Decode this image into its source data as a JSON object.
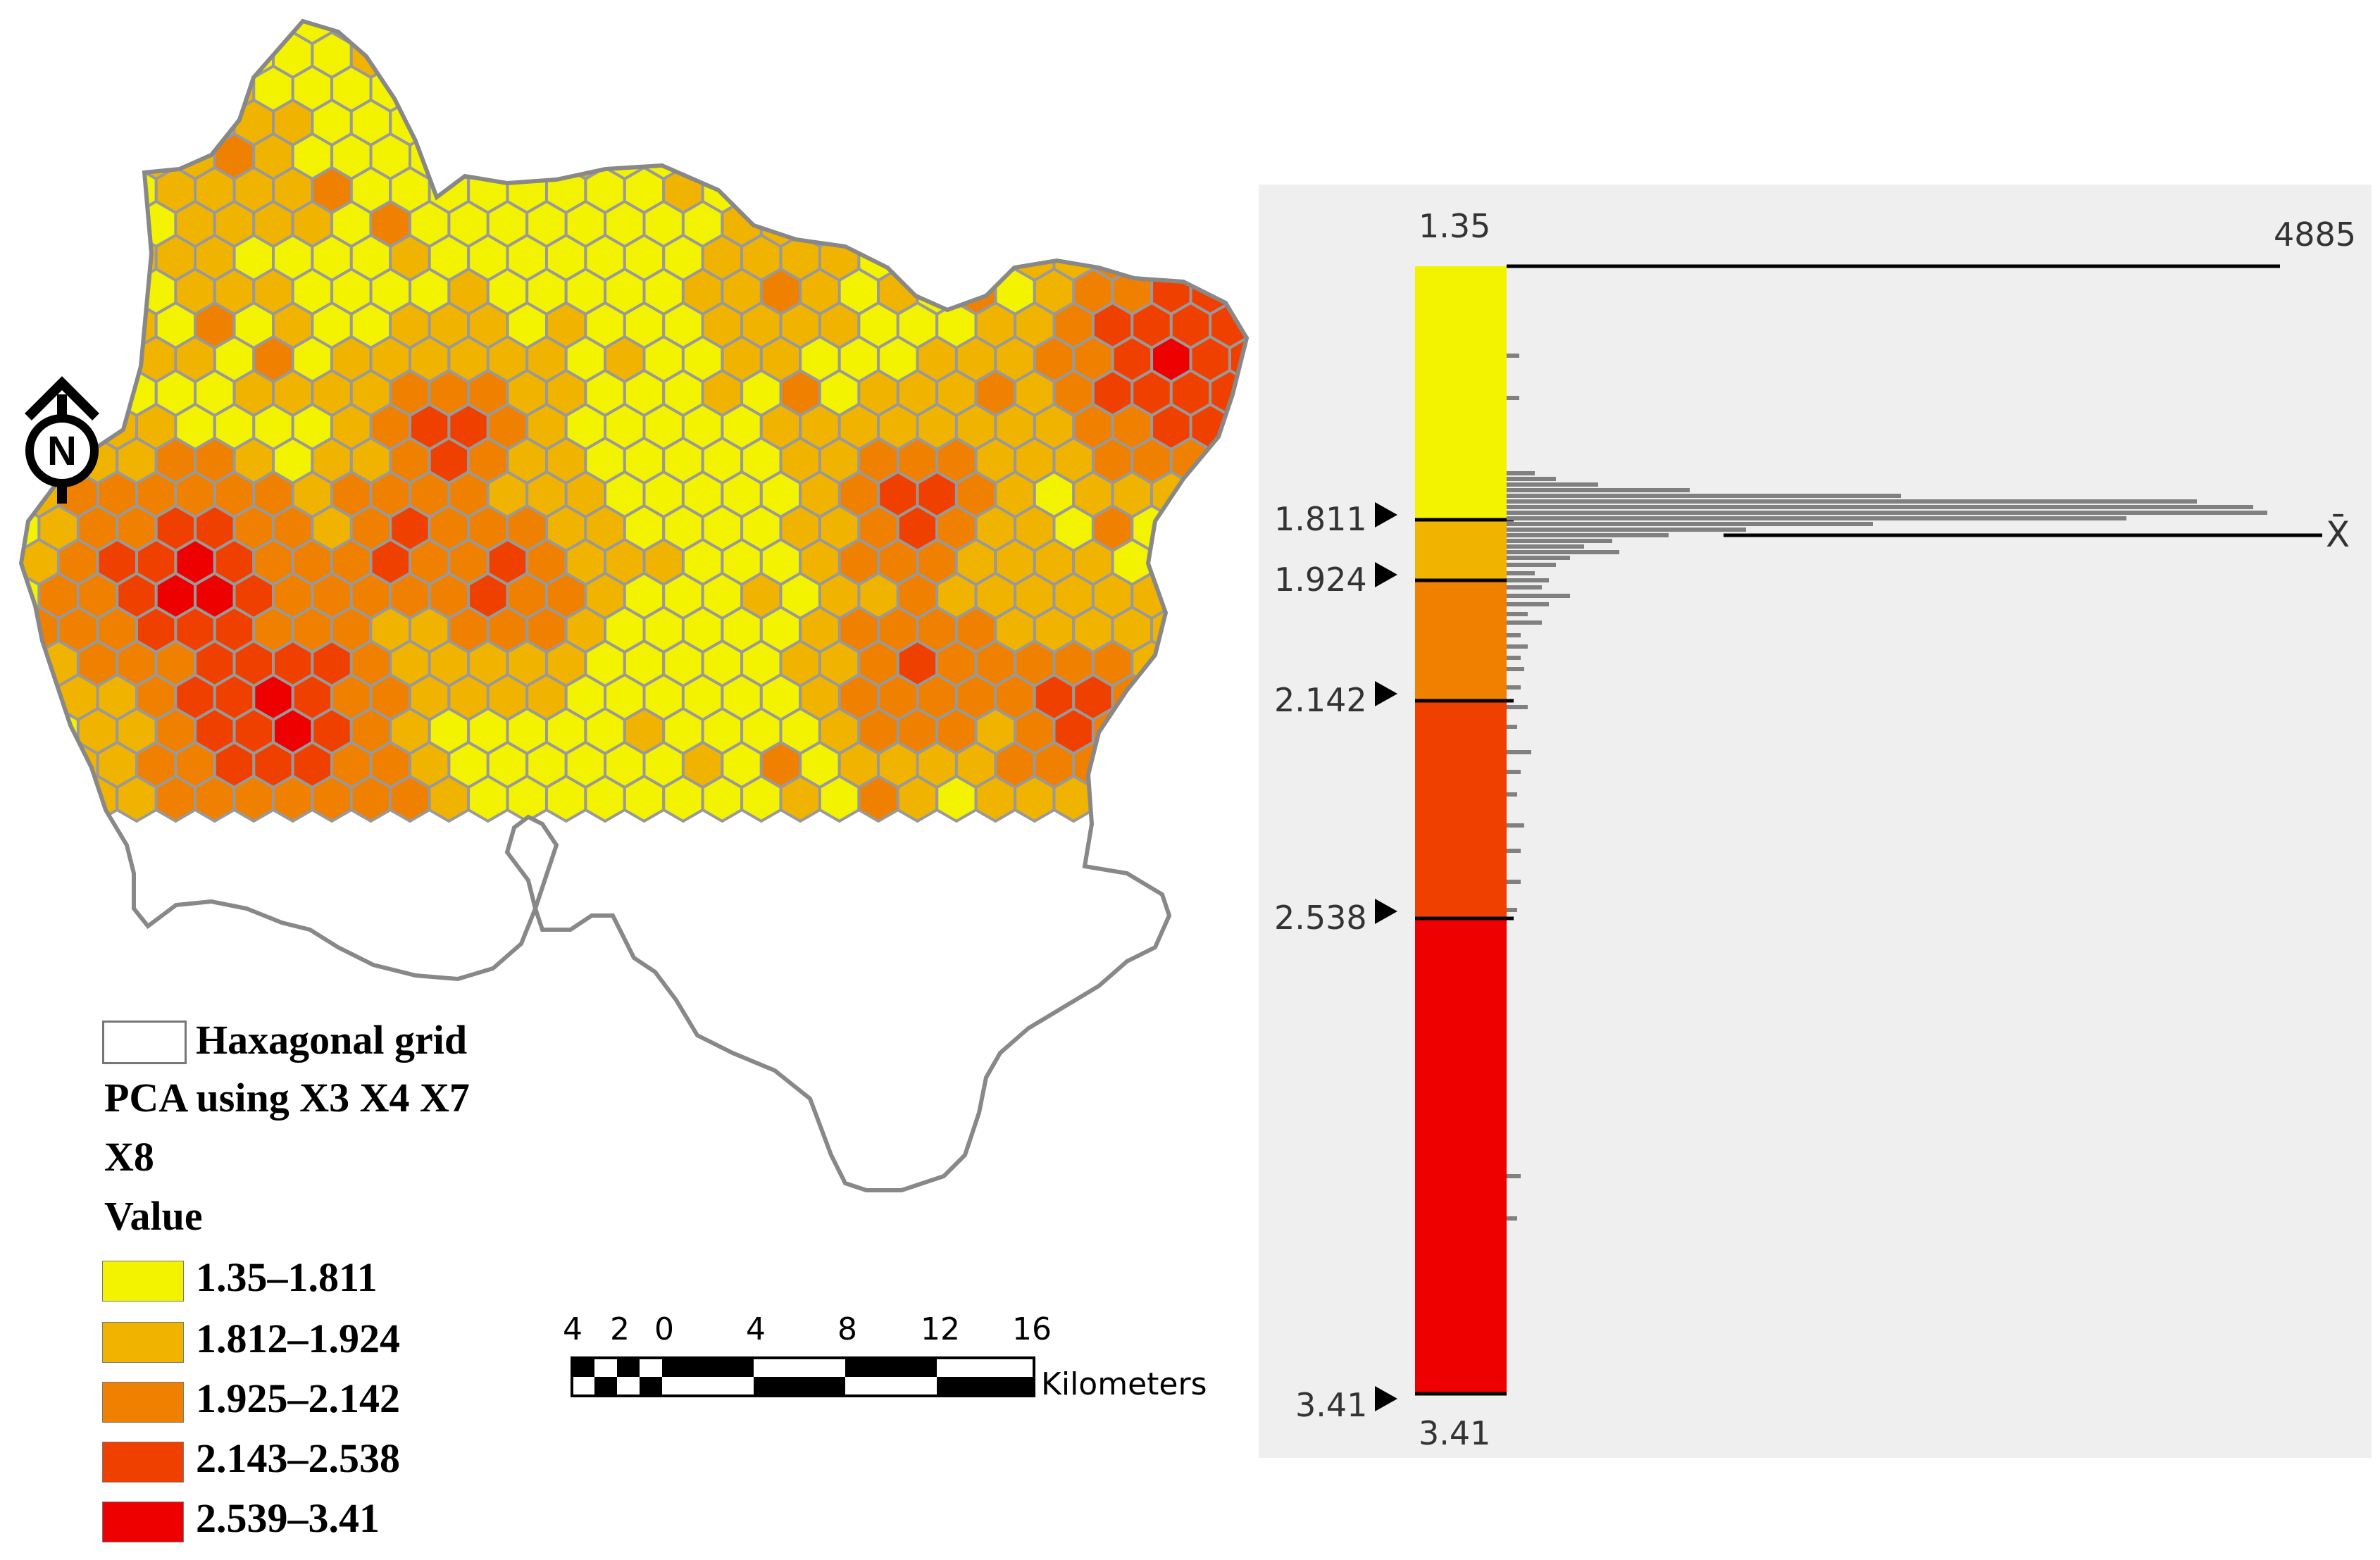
{
  "north_arrow": {
    "label": "N"
  },
  "legend": {
    "grid_label": "Haxagonal grid",
    "layer_title_1": "PCA using X3 X4 X7",
    "layer_title_2": "X8",
    "value_title": "Value",
    "classes": [
      {
        "label": "1.35–1.811",
        "color": "#f3f300"
      },
      {
        "label": "1.812–1.924",
        "color": "#f0b400"
      },
      {
        "label": "1.925–2.142",
        "color": "#f08000"
      },
      {
        "label": "2.143–2.538",
        "color": "#f04000"
      },
      {
        "label": "2.539–3.41",
        "color": "#ee0000"
      }
    ]
  },
  "scale_bar": {
    "ticks": [
      "4",
      "2",
      "0",
      "4",
      "8",
      "12",
      "16"
    ],
    "unit": "Kilometers"
  },
  "histogram": {
    "min_label": "1.35",
    "max_count_label": "4885",
    "mean_label": "X̄",
    "bottom_label": "3.41",
    "breaks": [
      "1.811",
      "1.924",
      "2.142",
      "2.538",
      "3.41"
    ],
    "class_colors": [
      "#f3f300",
      "#f0b400",
      "#f08000",
      "#f04000",
      "#ee0000"
    ]
  },
  "colors": {
    "hex_stroke": "#999999",
    "outline": "#888888",
    "panel_bg": "#efefef",
    "bar": "#808080"
  }
}
